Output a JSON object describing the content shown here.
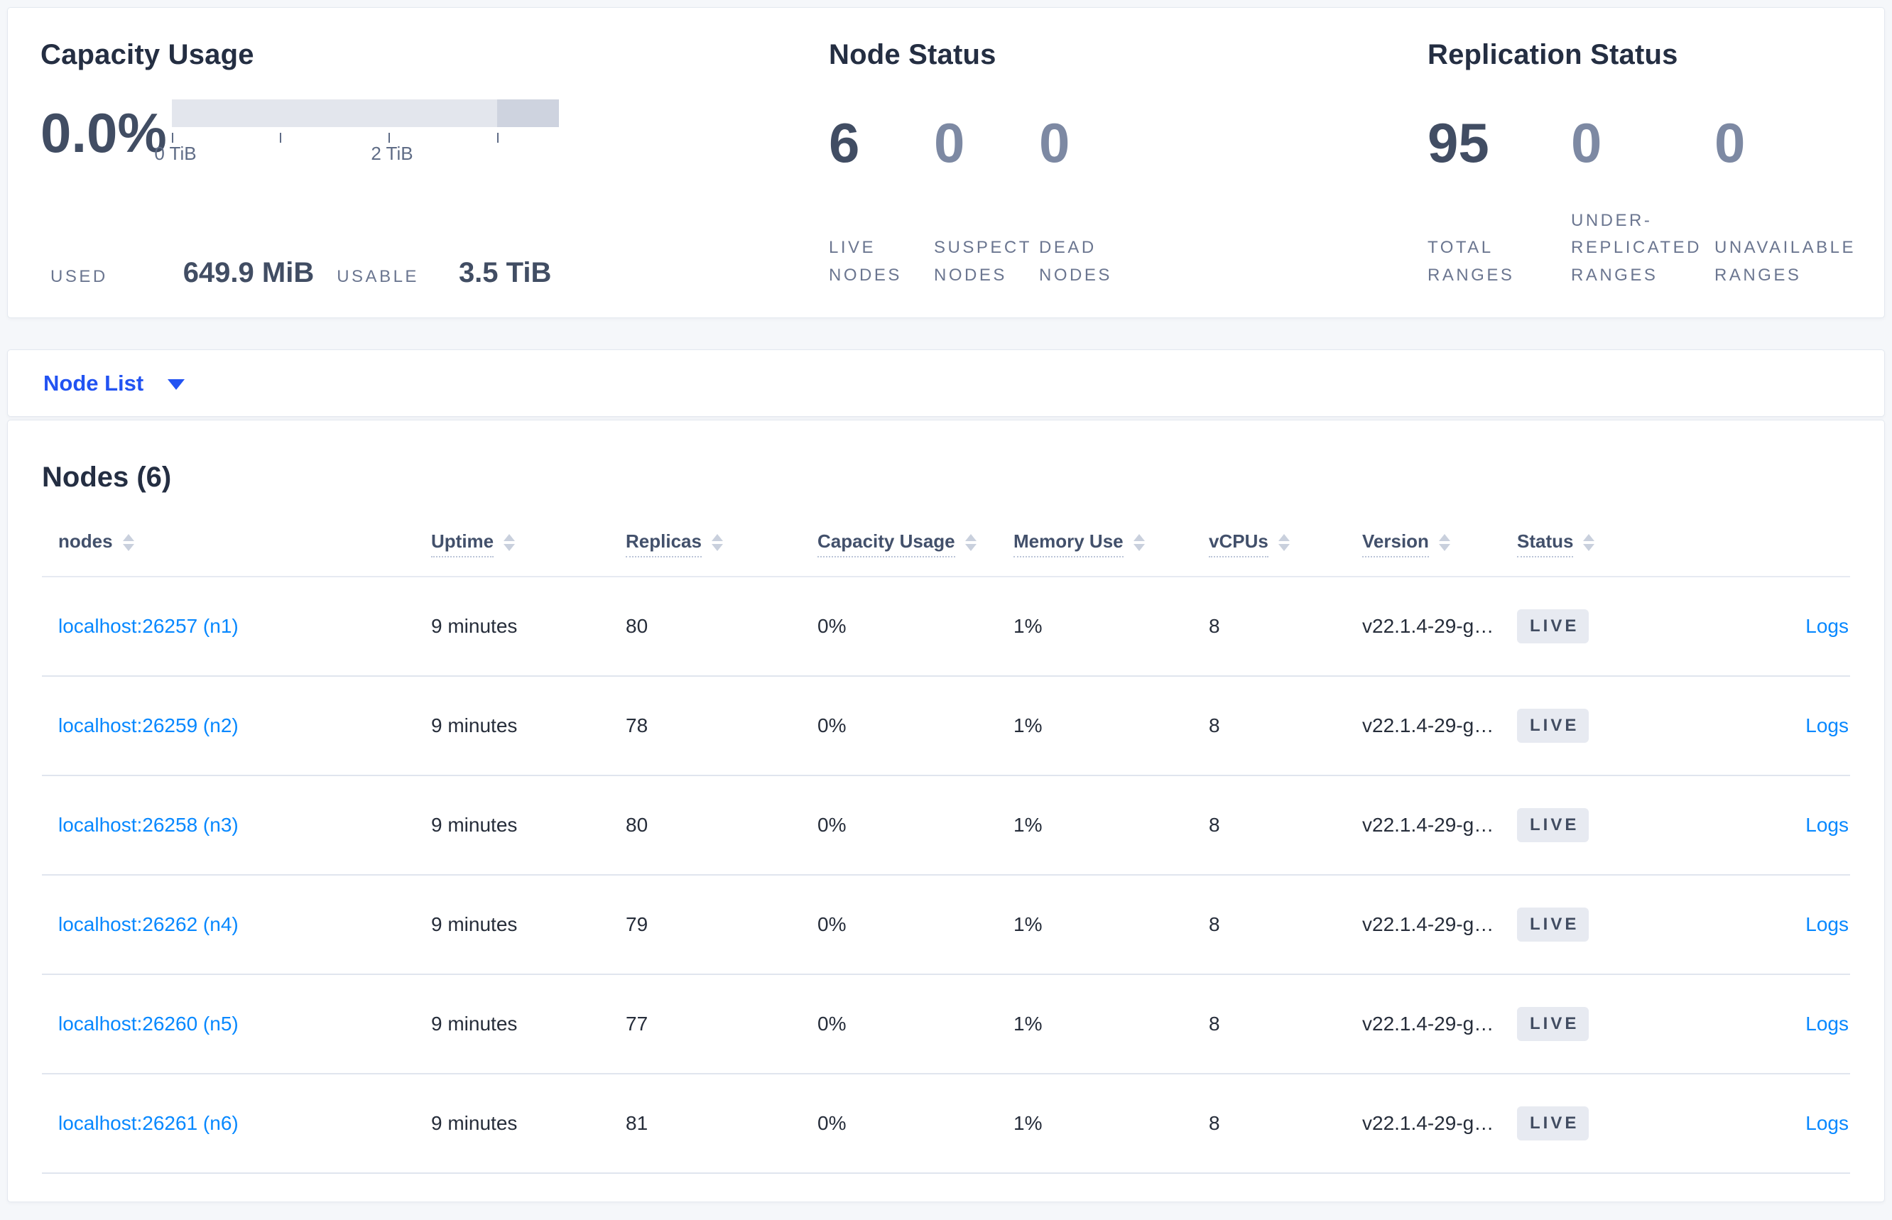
{
  "summary": {
    "capacity": {
      "title": "Capacity Usage",
      "percent": "0.0%",
      "axis_ticks": [
        "0 TiB",
        "1 TiB",
        "2 TiB",
        "3 TiB"
      ],
      "axis_tick_labels_visible": [
        "0 TiB",
        "2 TiB"
      ],
      "used_label": "USED",
      "used_value": "649.9 MiB",
      "usable_label": "USABLE",
      "usable_value": "3.5 TiB"
    },
    "node_status": {
      "title": "Node Status",
      "stats": [
        {
          "value": "6",
          "label": "LIVE\nNODES",
          "muted": false
        },
        {
          "value": "0",
          "label": "SUSPECT\nNODES",
          "muted": true
        },
        {
          "value": "0",
          "label": "DEAD\nNODES",
          "muted": true
        }
      ]
    },
    "replication": {
      "title": "Replication Status",
      "stats": [
        {
          "value": "95",
          "label": "TOTAL\nRANGES",
          "muted": false
        },
        {
          "value": "0",
          "label": "UNDER-\nREPLICATED\nRANGES",
          "muted": true
        },
        {
          "value": "0",
          "label": "UNAVAILABLE\nRANGES",
          "muted": true
        }
      ]
    }
  },
  "view_selector": {
    "label": "Node List"
  },
  "nodes_table": {
    "title": "Nodes (6)",
    "logs_label": "Logs",
    "columns": [
      {
        "label": "nodes",
        "tooltip": false
      },
      {
        "label": "Uptime",
        "tooltip": true
      },
      {
        "label": "Replicas",
        "tooltip": true
      },
      {
        "label": "Capacity Usage",
        "tooltip": true
      },
      {
        "label": "Memory Use",
        "tooltip": true
      },
      {
        "label": "vCPUs",
        "tooltip": true
      },
      {
        "label": "Version",
        "tooltip": true
      },
      {
        "label": "Status",
        "tooltip": true
      }
    ],
    "rows": [
      {
        "node": "localhost:26257 (n1)",
        "uptime": "9 minutes",
        "replicas": "80",
        "capacity": "0%",
        "memory": "1%",
        "vcpus": "8",
        "version": "v22.1.4-29-g…",
        "status": "LIVE"
      },
      {
        "node": "localhost:26259 (n2)",
        "uptime": "9 minutes",
        "replicas": "78",
        "capacity": "0%",
        "memory": "1%",
        "vcpus": "8",
        "version": "v22.1.4-29-g…",
        "status": "LIVE"
      },
      {
        "node": "localhost:26258 (n3)",
        "uptime": "9 minutes",
        "replicas": "80",
        "capacity": "0%",
        "memory": "1%",
        "vcpus": "8",
        "version": "v22.1.4-29-g…",
        "status": "LIVE"
      },
      {
        "node": "localhost:26262 (n4)",
        "uptime": "9 minutes",
        "replicas": "79",
        "capacity": "0%",
        "memory": "1%",
        "vcpus": "8",
        "version": "v22.1.4-29-g…",
        "status": "LIVE"
      },
      {
        "node": "localhost:26260 (n5)",
        "uptime": "9 minutes",
        "replicas": "77",
        "capacity": "0%",
        "memory": "1%",
        "vcpus": "8",
        "version": "v22.1.4-29-g…",
        "status": "LIVE"
      },
      {
        "node": "localhost:26261 (n6)",
        "uptime": "9 minutes",
        "replicas": "81",
        "capacity": "0%",
        "memory": "1%",
        "vcpus": "8",
        "version": "v22.1.4-29-g…",
        "status": "LIVE"
      }
    ]
  },
  "colors": {
    "link_blue": "#0788ff",
    "selector_blue": "#2253f2",
    "dark_number": "#414d63",
    "muted_number": "#7d89a3",
    "bar_light": "#e3e6ed",
    "bar_dark": "#ced3df",
    "badge_bg": "#e7eaf1"
  }
}
